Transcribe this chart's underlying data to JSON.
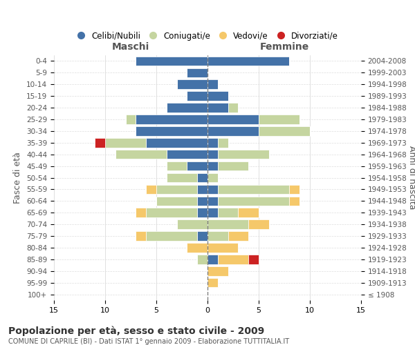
{
  "age_groups": [
    "100+",
    "95-99",
    "90-94",
    "85-89",
    "80-84",
    "75-79",
    "70-74",
    "65-69",
    "60-64",
    "55-59",
    "50-54",
    "45-49",
    "40-44",
    "35-39",
    "30-34",
    "25-29",
    "20-24",
    "15-19",
    "10-14",
    "5-9",
    "0-4"
  ],
  "birth_years": [
    "≤ 1908",
    "1909-1913",
    "1914-1918",
    "1919-1923",
    "1924-1928",
    "1929-1933",
    "1934-1938",
    "1939-1943",
    "1944-1948",
    "1949-1953",
    "1954-1958",
    "1959-1963",
    "1964-1968",
    "1969-1973",
    "1974-1978",
    "1979-1983",
    "1984-1988",
    "1989-1993",
    "1994-1998",
    "1999-2003",
    "2004-2008"
  ],
  "maschi": {
    "celibi": [
      0,
      0,
      0,
      0,
      0,
      1,
      0,
      1,
      1,
      1,
      1,
      2,
      4,
      6,
      7,
      7,
      4,
      2,
      3,
      2,
      7
    ],
    "coniugati": [
      0,
      0,
      0,
      1,
      0,
      5,
      3,
      5,
      4,
      4,
      3,
      2,
      5,
      4,
      0,
      1,
      0,
      0,
      0,
      0,
      0
    ],
    "vedovi": [
      0,
      0,
      0,
      0,
      2,
      1,
      0,
      1,
      0,
      1,
      0,
      0,
      0,
      0,
      0,
      0,
      0,
      0,
      0,
      0,
      0
    ],
    "divorziati": [
      0,
      0,
      0,
      0,
      0,
      0,
      0,
      0,
      0,
      0,
      0,
      0,
      0,
      1,
      0,
      0,
      0,
      0,
      0,
      0,
      0
    ]
  },
  "femmine": {
    "nubili": [
      0,
      0,
      0,
      1,
      0,
      0,
      0,
      1,
      1,
      1,
      0,
      1,
      1,
      1,
      5,
      5,
      2,
      2,
      1,
      0,
      8
    ],
    "coniugate": [
      0,
      0,
      0,
      0,
      0,
      2,
      4,
      2,
      7,
      7,
      1,
      3,
      5,
      1,
      5,
      4,
      1,
      0,
      0,
      0,
      0
    ],
    "vedove": [
      0,
      1,
      2,
      3,
      3,
      2,
      2,
      2,
      1,
      1,
      0,
      0,
      0,
      0,
      0,
      0,
      0,
      0,
      0,
      0,
      0
    ],
    "divorziate": [
      0,
      0,
      0,
      1,
      0,
      0,
      0,
      0,
      0,
      0,
      0,
      0,
      0,
      0,
      0,
      0,
      0,
      0,
      0,
      0,
      0
    ]
  },
  "colors": {
    "celibi": "#4472a8",
    "coniugati": "#c5d5a0",
    "vedovi": "#f5c86a",
    "divorziati": "#cc2222"
  },
  "xlim": 15,
  "title": "Popolazione per età, sesso e stato civile - 2009",
  "subtitle": "COMUNE DI CAPRILE (BI) - Dati ISTAT 1° gennaio 2009 - Elaborazione TUTTITALIA.IT",
  "ylabel_left": "Fasce di età",
  "ylabel_right": "Anni di nascita",
  "legend_labels": [
    "Celibi/Nubili",
    "Coniugati/e",
    "Vedovi/e",
    "Divorziati/e"
  ]
}
